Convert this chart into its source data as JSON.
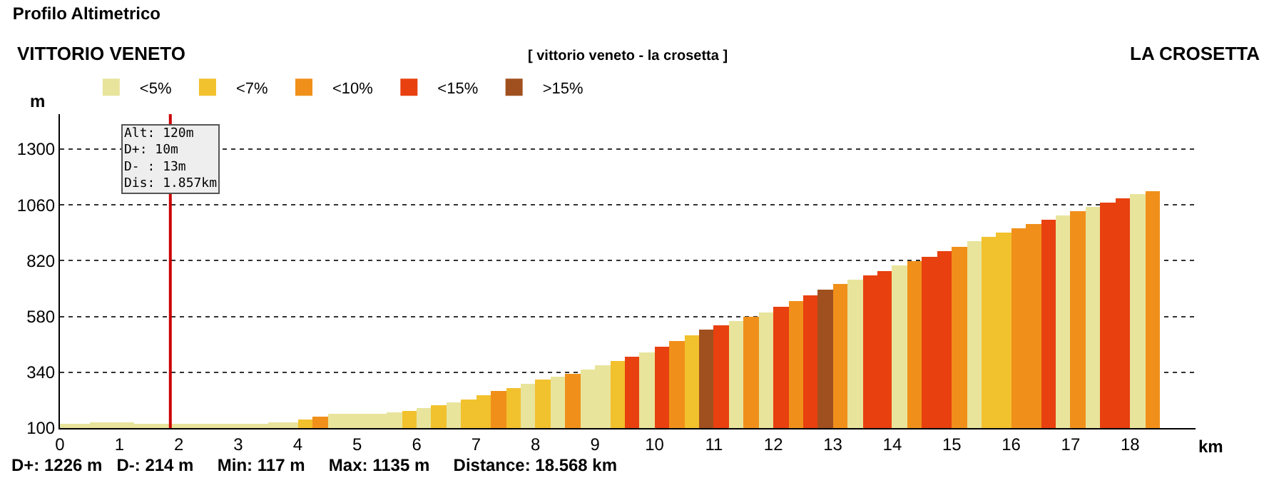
{
  "chart_data": {
    "type": "bar",
    "title": "Profilo Altimetrico",
    "subtitle": "[ vittorio veneto - la crosetta ]",
    "xlabel": "km",
    "ylabel": "m",
    "annotations": [
      "VITTORIO VENETO",
      "LA CROSETTA",
      "D+: 1226 m   D-: 214 m     Min: 117 m     Max: 1135 m     Distance: 18.568 km"
    ],
    "x": [
      0.125,
      0.375,
      0.625,
      0.875,
      1.125,
      1.375,
      1.625,
      1.875,
      2.125,
      2.375,
      2.625,
      2.875,
      3.125,
      3.375,
      3.625,
      3.875,
      4.125,
      4.375,
      4.625,
      4.875,
      5.125,
      5.375,
      5.625,
      5.875,
      6.125,
      6.375,
      6.625,
      6.875,
      7.125,
      7.375,
      7.625,
      7.875,
      8.125,
      8.375,
      8.625,
      8.875,
      9.125,
      9.375,
      9.625,
      9.875,
      10.125,
      10.375,
      10.625,
      10.875,
      11.125,
      11.375,
      11.625,
      11.875,
      12.125,
      12.375,
      12.625,
      12.875,
      13.125,
      13.375,
      13.625,
      13.875,
      14.125,
      14.375,
      14.625,
      14.875,
      15.125,
      15.375,
      15.625,
      15.875,
      16.125,
      16.375,
      16.625,
      16.875,
      17.125,
      17.375,
      17.625,
      17.875,
      18.125,
      18.375
    ],
    "series": [
      {
        "name": "<5%",
        "color": "#e8e49c",
        "values": [
          120,
          121,
          124,
          124,
          122,
          121,
          120,
          119,
          117,
          117,
          118,
          119,
          120,
          121,
          123,
          125,
          null,
          null,
          160,
          162,
          162,
          163,
          168,
          null,
          186,
          null,
          212,
          null,
          null,
          null,
          null,
          291,
          null,
          321,
          null,
          350,
          367,
          null,
          null,
          427,
          null,
          null,
          null,
          null,
          null,
          562,
          null,
          600,
          null,
          null,
          null,
          null,
          null,
          739,
          null,
          null,
          797,
          null,
          null,
          null,
          null,
          901,
          null,
          null,
          null,
          null,
          null,
          1017,
          null,
          1054,
          null,
          null,
          1106,
          null
        ]
      },
      {
        "name": "<7%",
        "color": "#f2c12e",
        "values": [
          null,
          null,
          null,
          null,
          null,
          null,
          null,
          null,
          null,
          null,
          null,
          null,
          null,
          null,
          null,
          null,
          134,
          null,
          null,
          null,
          null,
          null,
          null,
          176,
          null,
          199,
          null,
          225,
          240,
          null,
          274,
          null,
          307,
          null,
          null,
          null,
          null,
          387,
          null,
          null,
          null,
          null,
          498,
          null,
          null,
          null,
          null,
          null,
          null,
          null,
          null,
          null,
          null,
          null,
          null,
          null,
          null,
          null,
          null,
          null,
          null,
          null,
          921,
          941,
          null,
          null,
          null,
          null,
          null,
          null,
          null,
          null,
          null,
          null
        ]
      },
      {
        "name": "<10%",
        "color": "#f0901a",
        "values": [
          null,
          null,
          null,
          null,
          null,
          null,
          null,
          null,
          null,
          null,
          null,
          null,
          null,
          null,
          null,
          null,
          null,
          148,
          null,
          null,
          null,
          null,
          null,
          null,
          null,
          null,
          null,
          null,
          null,
          257,
          null,
          null,
          null,
          null,
          335,
          null,
          null,
          null,
          null,
          null,
          null,
          473,
          null,
          null,
          null,
          null,
          581,
          null,
          null,
          648,
          null,
          null,
          720,
          null,
          null,
          null,
          null,
          818,
          null,
          null,
          881,
          null,
          null,
          null,
          960,
          979,
          null,
          null,
          1035,
          null,
          null,
          null,
          null,
          1120
        ]
      },
      {
        "name": "<15%",
        "color": "#e8400f",
        "values": [
          null,
          null,
          null,
          null,
          null,
          null,
          null,
          null,
          null,
          null,
          null,
          null,
          null,
          null,
          null,
          null,
          null,
          null,
          null,
          null,
          null,
          null,
          null,
          null,
          null,
          null,
          null,
          null,
          null,
          null,
          null,
          null,
          null,
          null,
          null,
          null,
          null,
          null,
          407,
          null,
          449,
          null,
          null,
          null,
          543,
          null,
          null,
          null,
          622,
          null,
          673,
          null,
          null,
          null,
          758,
          777,
          null,
          null,
          839,
          860,
          null,
          null,
          null,
          null,
          null,
          null,
          998,
          null,
          null,
          null,
          1072,
          1091,
          null,
          null
        ]
      },
      {
        "name": ">15%",
        "color": "#a0501e",
        "values": [
          null,
          null,
          null,
          null,
          null,
          null,
          null,
          null,
          null,
          null,
          null,
          null,
          null,
          null,
          null,
          null,
          null,
          null,
          null,
          null,
          null,
          null,
          null,
          null,
          null,
          null,
          null,
          null,
          null,
          null,
          null,
          null,
          null,
          null,
          null,
          null,
          null,
          null,
          null,
          null,
          null,
          null,
          null,
          522,
          null,
          null,
          null,
          null,
          null,
          null,
          null,
          698,
          null,
          null,
          null,
          null,
          null,
          null,
          null,
          null,
          null,
          null,
          null,
          null,
          null,
          null,
          null,
          null,
          null,
          null,
          null,
          null,
          null,
          null
        ]
      }
    ],
    "xlim": [
      0,
      19.1
    ],
    "ylim": [
      100,
      1450
    ],
    "xticks": [
      0,
      1,
      2,
      3,
      4,
      5,
      6,
      7,
      8,
      9,
      10,
      11,
      12,
      13,
      14,
      15,
      16,
      17,
      18
    ],
    "yticks": [
      100,
      340,
      580,
      820,
      1060,
      1300
    ],
    "grid": "y",
    "legend": "top left",
    "ref_lines": [
      {
        "axis": "x",
        "value": 1.857,
        "label": "Alt: 120m\nD+: 10m\nD- : 13m\nDis: 1.857km",
        "color": "#cc0000"
      }
    ]
  }
}
